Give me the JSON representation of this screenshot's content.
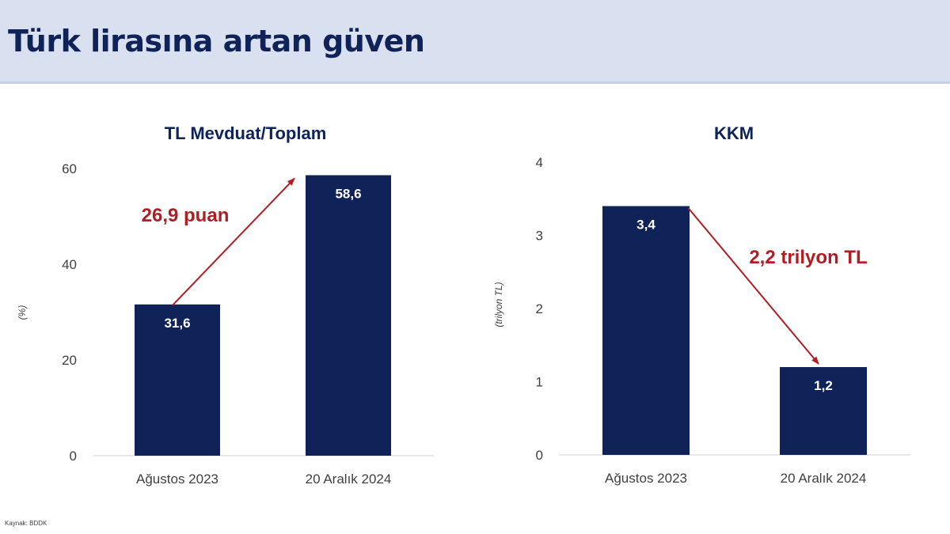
{
  "header": {
    "title": "Türk lirasına artan güven"
  },
  "source": "Kaynak: BDDK",
  "colors": {
    "bar": "#0f2359",
    "annotation": "#b01e23",
    "header_bg": "#d9e1f0",
    "title": "#0f2359"
  },
  "chart_data": [
    {
      "type": "bar",
      "title": "TL Mevduat/Toplam",
      "ylabel": "(%)",
      "xlabel": "",
      "categories": [
        "Ağustos 2023",
        "20 Aralık 2024"
      ],
      "values": [
        31.6,
        58.6
      ],
      "data_labels": [
        "31,6",
        "58,6"
      ],
      "ylim": [
        0,
        60
      ],
      "yticks": [
        0,
        20,
        40,
        60
      ],
      "ytick_labels": [
        "0",
        "20",
        "40",
        "60"
      ],
      "grid": false,
      "annotation": {
        "text": "26,9 puan",
        "direction": "increase"
      }
    },
    {
      "type": "bar",
      "title": "KKM",
      "ylabel": "(trilyon TL)",
      "xlabel": "",
      "categories": [
        "Ağustos 2023",
        "20 Aralık 2024"
      ],
      "values": [
        3.4,
        1.2
      ],
      "data_labels": [
        "3,4",
        "1,2"
      ],
      "ylim": [
        0,
        4
      ],
      "yticks": [
        0,
        1,
        2,
        3,
        4
      ],
      "ytick_labels": [
        "0",
        "1",
        "2",
        "3",
        "4"
      ],
      "grid": false,
      "annotation": {
        "text": "2,2 trilyon TL",
        "direction": "decrease"
      }
    }
  ]
}
